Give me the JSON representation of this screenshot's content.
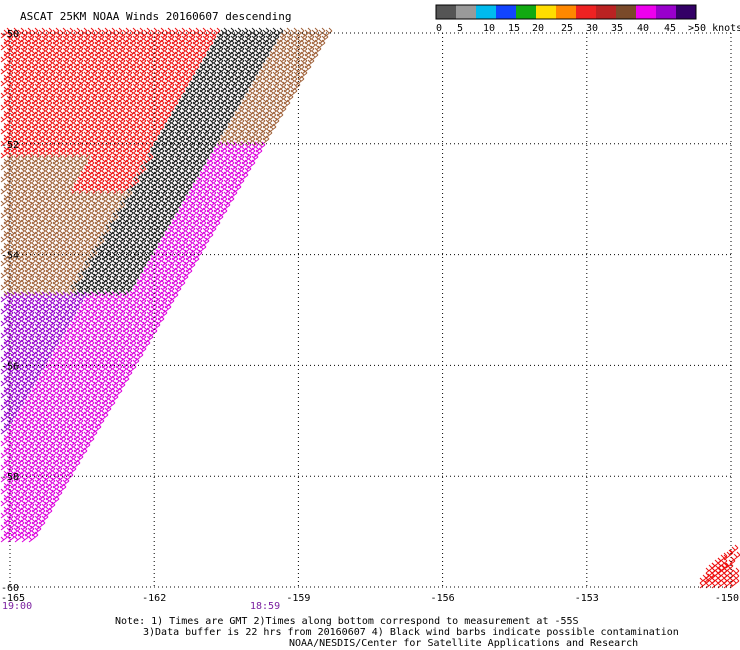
{
  "title": "ASCAT 25KM NOAA Winds 20160607 descending",
  "legend": {
    "segments": [
      {
        "color": "#555555"
      },
      {
        "color": "#9a9a9a"
      },
      {
        "color": "#00bbee"
      },
      {
        "color": "#1144ff"
      },
      {
        "color": "#11aa11"
      },
      {
        "color": "#ffdd00"
      },
      {
        "color": "#ff8800"
      },
      {
        "color": "#ee2222"
      },
      {
        "color": "#bb2222"
      },
      {
        "color": "#7a4a2a"
      },
      {
        "color": "#ee00ee"
      },
      {
        "color": "#9900cc"
      },
      {
        "color": "#330066"
      }
    ],
    "labels": [
      "0",
      "5",
      "10",
      "15",
      "20",
      "25",
      "30",
      "35",
      "40",
      "45",
      ">50 knots"
    ]
  },
  "axes": {
    "lon_ticks": [
      "-165",
      "-162",
      "-159",
      "-156",
      "-153",
      "-150"
    ],
    "lat_ticks": [
      "-50",
      "-52",
      "-54",
      "-56",
      "-58",
      "-60"
    ],
    "lon_range": [
      -165,
      -150
    ],
    "lat_range": [
      -60,
      -50
    ]
  },
  "times": [
    "19:00",
    "18:59"
  ],
  "notes": {
    "line1": "Note: 1) Times are GMT 2)Times along bottom correspond to measurement at -55S",
    "line2": "3)Data buffer is 22 hrs from 20160607 4) Black wind barbs indicate possible contamination",
    "line3": "NOAA/NESDIS/Center for Satellite Applications and Research"
  },
  "wind_colors": {
    "red": "#ee1111",
    "brown": "#a0623a",
    "black": "#1a1a1a",
    "magenta": "#dd00dd",
    "purple": "#9900cc"
  }
}
